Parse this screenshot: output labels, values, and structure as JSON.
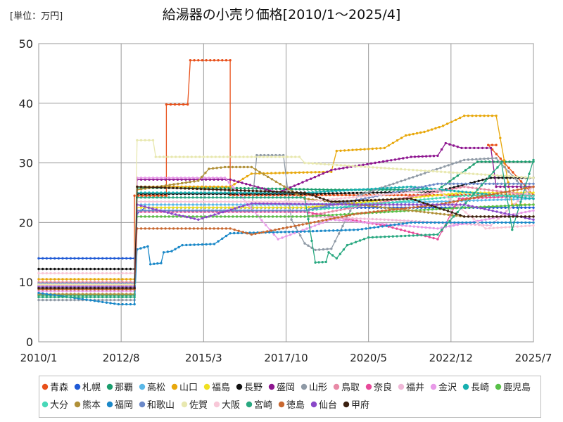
{
  "chart_data": {
    "type": "line",
    "title": "給湯器の小売り価格[2010/1～2025/4]",
    "unit_label": "[単位：万円]",
    "xlabel": "",
    "ylabel": "",
    "ylim": [
      0,
      50
    ],
    "y_ticks": [
      "0",
      "10",
      "20",
      "30",
      "40",
      "50"
    ],
    "x_ticks": [
      "2010/1",
      "2012/8",
      "2015/3",
      "2017/10",
      "2020/5",
      "2022/12",
      "2025/7"
    ],
    "x_range_months": [
      0,
      186
    ],
    "grid": true,
    "legend_position": "bottom",
    "series": [
      {
        "name": "青森",
        "color": "#e8501a",
        "points": [
          [
            0,
            9.5
          ],
          [
            36,
            9.5
          ],
          [
            36,
            24.5
          ],
          [
            48,
            24.5
          ],
          [
            48,
            39.8
          ],
          [
            56,
            39.8
          ],
          [
            57,
            47.2
          ],
          [
            72,
            47.2
          ],
          [
            72,
            24.6
          ],
          [
            186,
            24.6
          ],
          [
            169,
            33.0
          ],
          [
            172,
            33.0
          ]
        ]
      },
      {
        "name": "札幌",
        "color": "#1f5ad6",
        "points": [
          [
            0,
            14.0
          ],
          [
            36,
            14.0
          ],
          [
            37,
            21.5
          ],
          [
            40,
            22.5
          ],
          [
            186,
            22.5
          ]
        ]
      },
      {
        "name": "那覇",
        "color": "#1b9e6e",
        "points": [
          [
            0,
            7.8
          ],
          [
            36,
            7.8
          ],
          [
            37,
            25.8
          ],
          [
            70,
            25.8
          ],
          [
            110,
            25.5
          ],
          [
            150,
            25.5
          ],
          [
            165,
            30.2
          ],
          [
            186,
            30.2
          ]
        ]
      },
      {
        "name": "高松",
        "color": "#5ab8e8",
        "points": [
          [
            0,
            9.0
          ],
          [
            36,
            9.0
          ],
          [
            37,
            23.0
          ],
          [
            100,
            23.0
          ],
          [
            150,
            23.5
          ],
          [
            186,
            24.0
          ]
        ]
      },
      {
        "name": "山口",
        "color": "#e8a80c",
        "points": [
          [
            0,
            10.5
          ],
          [
            36,
            10.5
          ],
          [
            37,
            26.0
          ],
          [
            72,
            26.0
          ],
          [
            80,
            28.2
          ],
          [
            110,
            28.5
          ],
          [
            112,
            32.0
          ],
          [
            130,
            32.5
          ],
          [
            138,
            34.6
          ],
          [
            145,
            35.2
          ],
          [
            152,
            36.2
          ],
          [
            160,
            37.9
          ],
          [
            172,
            37.9
          ],
          [
            178,
            23.0
          ],
          [
            186,
            23.0
          ]
        ]
      },
      {
        "name": "福島",
        "color": "#f0e020",
        "points": [
          [
            0,
            10.0
          ],
          [
            36,
            10.0
          ],
          [
            37,
            22.5
          ],
          [
            100,
            22.5
          ],
          [
            160,
            25.0
          ],
          [
            186,
            25.0
          ]
        ]
      },
      {
        "name": "長野",
        "color": "#111111",
        "points": [
          [
            0,
            12.2
          ],
          [
            36,
            12.2
          ],
          [
            37,
            24.8
          ],
          [
            100,
            24.8
          ],
          [
            150,
            25.2
          ],
          [
            170,
            27.5
          ],
          [
            186,
            27.5
          ]
        ]
      },
      {
        "name": "盛岡",
        "color": "#8e1690",
        "points": [
          [
            0,
            9.0
          ],
          [
            36,
            9.0
          ],
          [
            37,
            27.2
          ],
          [
            72,
            27.2
          ],
          [
            90,
            25.0
          ],
          [
            110,
            28.8
          ],
          [
            140,
            31.0
          ],
          [
            150,
            31.2
          ],
          [
            153,
            33.3
          ],
          [
            159,
            32.5
          ],
          [
            170,
            32.5
          ],
          [
            172,
            26.0
          ],
          [
            186,
            26.0
          ]
        ]
      },
      {
        "name": "山形",
        "color": "#8f9aa6",
        "points": [
          [
            0,
            7.0
          ],
          [
            36,
            7.0
          ],
          [
            37,
            22.0
          ],
          [
            80,
            22.0
          ],
          [
            82,
            31.3
          ],
          [
            92,
            31.3
          ],
          [
            95,
            20.5
          ],
          [
            100,
            16.5
          ],
          [
            104,
            15.4
          ],
          [
            110,
            15.6
          ],
          [
            120,
            24.5
          ],
          [
            160,
            30.5
          ],
          [
            172,
            30.8
          ],
          [
            186,
            24.0
          ]
        ]
      },
      {
        "name": "鳥取",
        "color": "#e88aa6",
        "points": [
          [
            0,
            10.0
          ],
          [
            36,
            10.0
          ],
          [
            37,
            21.0
          ],
          [
            100,
            21.0
          ],
          [
            160,
            26.0
          ],
          [
            186,
            24.5
          ]
        ]
      },
      {
        "name": "奈良",
        "color": "#e84a9a",
        "points": [
          [
            0,
            9.5
          ],
          [
            36,
            9.5
          ],
          [
            37,
            21.8
          ],
          [
            100,
            21.8
          ],
          [
            130,
            19.5
          ],
          [
            150,
            17.2
          ],
          [
            158,
            24.0
          ],
          [
            186,
            24.5
          ]
        ]
      },
      {
        "name": "福井",
        "color": "#f0b8d8",
        "points": [
          [
            0,
            9.0
          ],
          [
            36,
            9.0
          ],
          [
            37,
            21.0
          ],
          [
            100,
            21.0
          ],
          [
            130,
            20.5
          ],
          [
            170,
            19.5
          ],
          [
            186,
            26.0
          ]
        ]
      },
      {
        "name": "金沢",
        "color": "#e89ae8",
        "points": [
          [
            0,
            8.5
          ],
          [
            36,
            8.5
          ],
          [
            37,
            27.5
          ],
          [
            70,
            27.5
          ],
          [
            90,
            17.2
          ],
          [
            110,
            20.5
          ],
          [
            150,
            19.0
          ],
          [
            186,
            22.0
          ]
        ]
      },
      {
        "name": "長崎",
        "color": "#18b0b0",
        "points": [
          [
            0,
            9.2
          ],
          [
            36,
            9.2
          ],
          [
            37,
            25.0
          ],
          [
            100,
            25.0
          ],
          [
            140,
            26.0
          ],
          [
            186,
            24.0
          ]
        ]
      },
      {
        "name": "鹿児島",
        "color": "#58c048",
        "points": [
          [
            0,
            7.5
          ],
          [
            36,
            7.5
          ],
          [
            37,
            21.0
          ],
          [
            100,
            21.0
          ],
          [
            160,
            22.5
          ],
          [
            186,
            23.0
          ]
        ]
      },
      {
        "name": "大分",
        "color": "#48d8b8",
        "points": [
          [
            0,
            8.0
          ],
          [
            36,
            8.0
          ],
          [
            37,
            22.0
          ],
          [
            100,
            22.0
          ],
          [
            160,
            24.5
          ],
          [
            186,
            24.5
          ]
        ]
      },
      {
        "name": "熊本",
        "color": "#b09038",
        "points": [
          [
            0,
            8.0
          ],
          [
            36,
            8.0
          ],
          [
            37,
            25.5
          ],
          [
            60,
            27.0
          ],
          [
            64,
            29.0
          ],
          [
            70,
            29.3
          ],
          [
            80,
            29.3
          ],
          [
            100,
            24.0
          ],
          [
            160,
            21.0
          ],
          [
            186,
            21.0
          ]
        ]
      },
      {
        "name": "福岡",
        "color": "#1a88c8",
        "points": [
          [
            0,
            8.2
          ],
          [
            30,
            6.3
          ],
          [
            36,
            6.3
          ],
          [
            37,
            15.5
          ],
          [
            41,
            16.0
          ],
          [
            42,
            13.0
          ],
          [
            46,
            13.2
          ],
          [
            47,
            15.0
          ],
          [
            50,
            15.2
          ],
          [
            54,
            16.2
          ],
          [
            66,
            16.4
          ],
          [
            72,
            18.2
          ],
          [
            100,
            18.5
          ],
          [
            120,
            18.8
          ],
          [
            140,
            20.0
          ],
          [
            186,
            20.0
          ]
        ]
      },
      {
        "name": "和歌山",
        "color": "#6a88c8",
        "points": [
          [
            0,
            9.8
          ],
          [
            36,
            9.8
          ],
          [
            37,
            22.0
          ],
          [
            100,
            22.0
          ],
          [
            150,
            26.5
          ],
          [
            186,
            26.5
          ]
        ]
      },
      {
        "name": "佐賀",
        "color": "#e8e8b0",
        "points": [
          [
            0,
            9.6
          ],
          [
            36,
            9.6
          ],
          [
            37,
            33.8
          ],
          [
            43,
            33.8
          ],
          [
            44,
            31.0
          ],
          [
            98,
            31.0
          ],
          [
            100,
            30.0
          ],
          [
            186,
            27.5
          ]
        ]
      },
      {
        "name": "大阪",
        "color": "#f8c8d8",
        "points": [
          [
            0,
            11.5
          ],
          [
            36,
            11.5
          ],
          [
            37,
            23.5
          ],
          [
            100,
            23.5
          ],
          [
            150,
            25.5
          ],
          [
            168,
            19.0
          ],
          [
            186,
            19.5
          ]
        ]
      },
      {
        "name": "宮崎",
        "color": "#28a880",
        "points": [
          [
            0,
            7.5
          ],
          [
            36,
            7.5
          ],
          [
            37,
            24.2
          ],
          [
            100,
            24.2
          ],
          [
            104,
            13.3
          ],
          [
            108,
            13.4
          ],
          [
            109,
            15.0
          ],
          [
            112,
            14.0
          ],
          [
            116,
            16.2
          ],
          [
            124,
            17.5
          ],
          [
            150,
            18.0
          ],
          [
            174,
            30.0
          ],
          [
            178,
            18.8
          ],
          [
            186,
            30.5
          ]
        ]
      },
      {
        "name": "徳島",
        "color": "#c86830",
        "points": [
          [
            0,
            8.8
          ],
          [
            36,
            8.8
          ],
          [
            37,
            19.0
          ],
          [
            72,
            19.0
          ],
          [
            80,
            18.0
          ],
          [
            120,
            21.5
          ],
          [
            150,
            23.0
          ],
          [
            186,
            26.0
          ]
        ]
      },
      {
        "name": "仙台",
        "color": "#8a48c8",
        "points": [
          [
            0,
            9.2
          ],
          [
            36,
            9.2
          ],
          [
            37,
            23.0
          ],
          [
            50,
            21.5
          ],
          [
            60,
            20.5
          ],
          [
            80,
            23.2
          ],
          [
            120,
            23.0
          ],
          [
            160,
            23.0
          ],
          [
            186,
            20.5
          ]
        ]
      },
      {
        "name": "甲府",
        "color": "#3a2010",
        "points": [
          [
            0,
            9.0
          ],
          [
            36,
            9.0
          ],
          [
            37,
            26.0
          ],
          [
            100,
            25.0
          ],
          [
            110,
            23.5
          ],
          [
            140,
            24.0
          ],
          [
            160,
            21.0
          ],
          [
            186,
            21.0
          ]
        ]
      }
    ]
  }
}
